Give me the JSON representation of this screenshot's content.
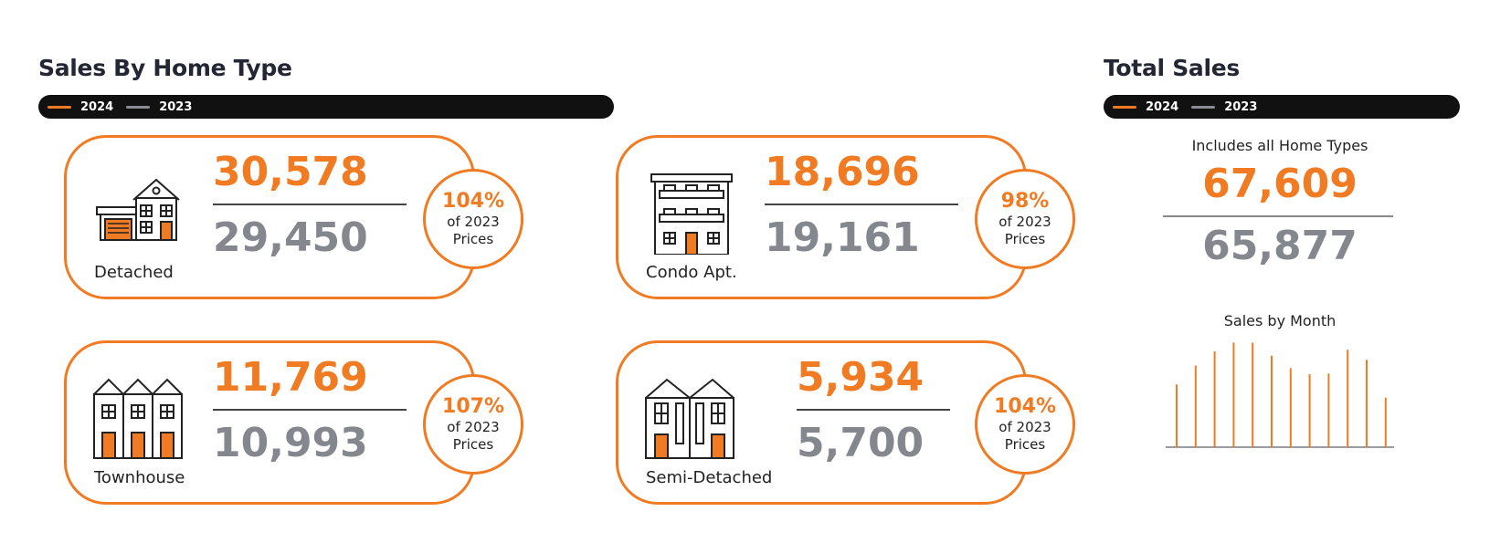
{
  "left_section": {
    "title": "Sales By Home Type"
  },
  "right_section": {
    "title": "Total Sales"
  },
  "legend": [
    {
      "label": "2024",
      "color": "#f07b23"
    },
    {
      "label": "2023",
      "color": "#8a8c92"
    }
  ],
  "cards": [
    {
      "label": "Detached",
      "current": "30,578",
      "previous": "29,450",
      "pct": "104%",
      "caption_line1": "of 2023",
      "caption_line2": "Prices"
    },
    {
      "label": "Condo Apt.",
      "current": "18,696",
      "previous": "19,161",
      "pct": "98%",
      "caption_line1": "of 2023",
      "caption_line2": "Prices"
    },
    {
      "label": "Townhouse",
      "current": "11,769",
      "previous": "10,993",
      "pct": "107%",
      "caption_line1": "of 2023",
      "caption_line2": "Prices"
    },
    {
      "label": "Semi-Detached",
      "current": "5,934",
      "previous": "5,700",
      "pct": "104%",
      "caption_line1": "of 2023",
      "caption_line2": "Prices"
    }
  ],
  "total": {
    "note": "Includes all Home Types",
    "current": "67,609",
    "previous": "65,877"
  },
  "colors": {
    "accent": "#f07b23",
    "muted": "#85878e",
    "dark": "#111111"
  },
  "chart_data": {
    "type": "bar",
    "title": "Sales by Month",
    "categories": [
      "",
      "",
      "",
      "",
      "",
      "",
      "",
      "",
      "",
      "",
      "",
      ""
    ],
    "values": [
      4870,
      6330,
      7440,
      8120,
      8110,
      7100,
      6140,
      5670,
      5710,
      7560,
      6770,
      3850
    ],
    "ylim": [
      0,
      8500
    ],
    "grid": false,
    "color": "#f07b23"
  }
}
